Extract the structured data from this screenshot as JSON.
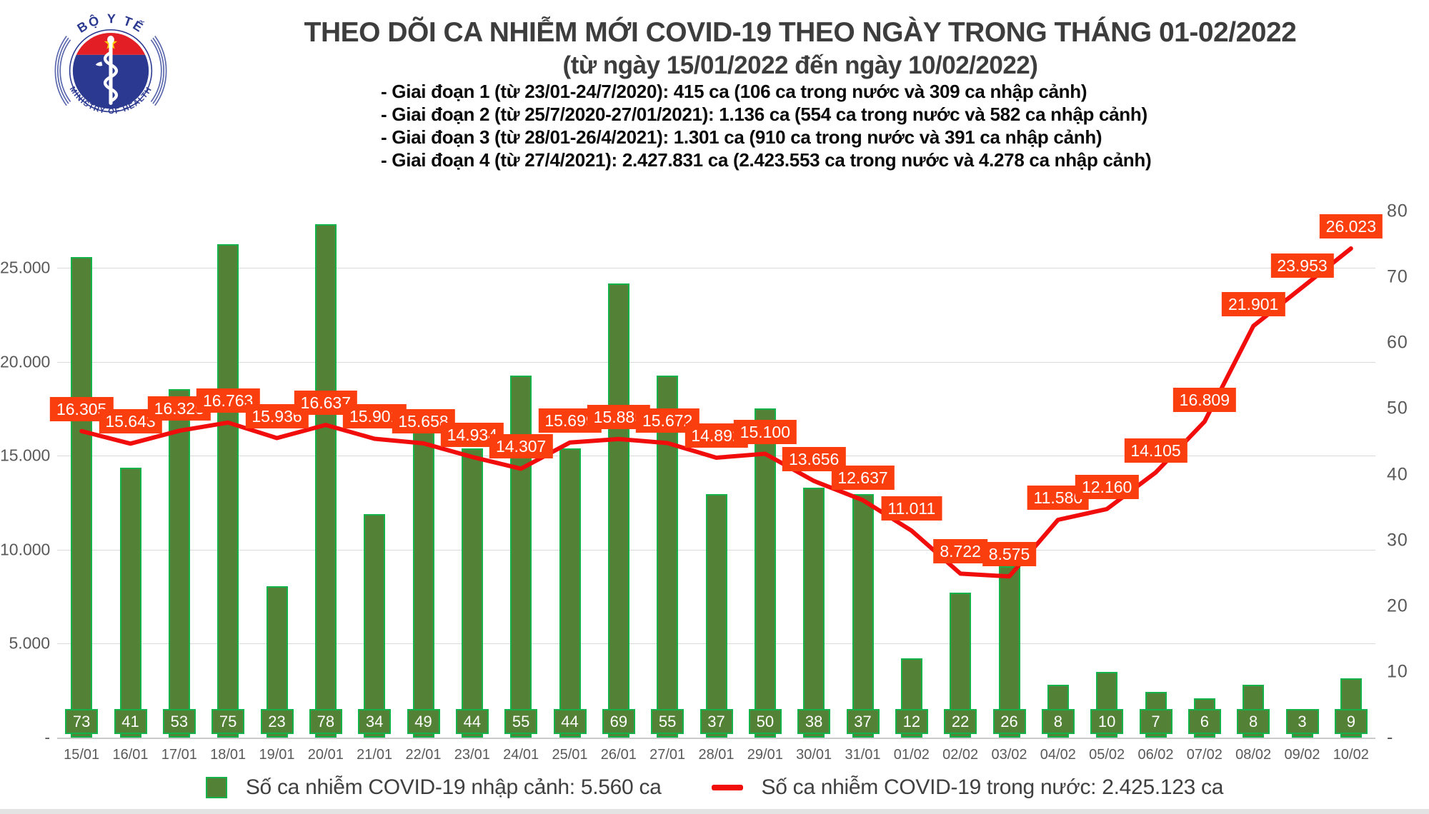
{
  "logo": {
    "top_text": "BỘ Y TẾ",
    "bottom_text": "MINISTRY OF HEALTH"
  },
  "header": {
    "title": "THEO DÕI CA NHIỄM MỚI COVID-19 THEO NGÀY TRONG THÁNG 01-02/2022",
    "subtitle": "(từ ngày 15/01/2022 đến ngày 10/02/2022)",
    "phases": [
      "- Giai đoạn 1 (từ 23/01-24/7/2020): 415 ca (106 ca trong nước và 309 ca nhập cảnh)",
      "- Giai đoạn 2 (từ 25/7/2020-27/01/2021): 1.136 ca (554 ca trong nước và 582 ca nhập cảnh)",
      "- Giai đoạn 3 (từ 28/01-26/4/2021): 1.301 ca (910 ca trong nước và 391 ca nhập cảnh)",
      "- Giai đoạn 4 (từ 27/4/2021): 2.427.831 ca (2.423.553 ca trong nước và 4.278 ca nhập cảnh)"
    ]
  },
  "chart_data": {
    "type": "bar+line combo",
    "categories": [
      "15/01",
      "16/01",
      "17/01",
      "18/01",
      "19/01",
      "20/01",
      "21/01",
      "22/01",
      "23/01",
      "24/01",
      "25/01",
      "26/01",
      "27/01",
      "28/01",
      "29/01",
      "30/01",
      "31/01",
      "01/02",
      "02/02",
      "03/02",
      "04/02",
      "05/02",
      "06/02",
      "07/02",
      "08/02",
      "09/02",
      "10/02"
    ],
    "series": [
      {
        "name": "Số ca nhiễm COVID-19 nhập cảnh",
        "type": "bar",
        "axis": "right",
        "values": [
          73,
          41,
          53,
          75,
          23,
          78,
          34,
          49,
          44,
          55,
          44,
          69,
          55,
          37,
          50,
          38,
          37,
          12,
          22,
          26,
          8,
          10,
          7,
          6,
          8,
          3,
          9
        ]
      },
      {
        "name": "Số ca nhiễm COVID-19 trong nước",
        "type": "line",
        "axis": "left",
        "values": [
          16305,
          15643,
          16325,
          16763,
          15936,
          16637,
          15901,
          15658,
          14934,
          14307,
          15699,
          15885,
          15672,
          14892,
          15100,
          13656,
          12637,
          11011,
          8722,
          8575,
          11586,
          12160,
          14105,
          16809,
          21901,
          23953,
          26023
        ]
      }
    ],
    "left_axis": {
      "min": 0,
      "max": 28000,
      "gridline_interval": 5000,
      "tick_labels": [
        "-",
        "5.000",
        "10.000",
        "15.000",
        "20.000",
        "25.000"
      ]
    },
    "right_axis": {
      "min": 0,
      "max": 80,
      "tick_interval": 10,
      "tick_labels": [
        "-",
        "10",
        "20",
        "30",
        "40",
        "50",
        "60",
        "70",
        "80"
      ]
    },
    "grid": true,
    "legend_position": "bottom"
  },
  "legend": {
    "bar_label": "Số ca nhiễm COVID-19 nhập cảnh: 5.560 ca",
    "line_label": "Số ca nhiễm COVID-19 trong nước: 2.425.123 ca"
  },
  "colors": {
    "bar_fill": "#538135",
    "bar_border": "#13b24b",
    "line": "#f20d0d",
    "line_label_bg": "#fb3e0e",
    "gridline": "#d9d9d9",
    "axis_text": "#595959",
    "title_text": "#3d3d3d",
    "logo_red": "#e31e25",
    "logo_blue": "#2b3990",
    "logo_star": "#ffcb05"
  }
}
